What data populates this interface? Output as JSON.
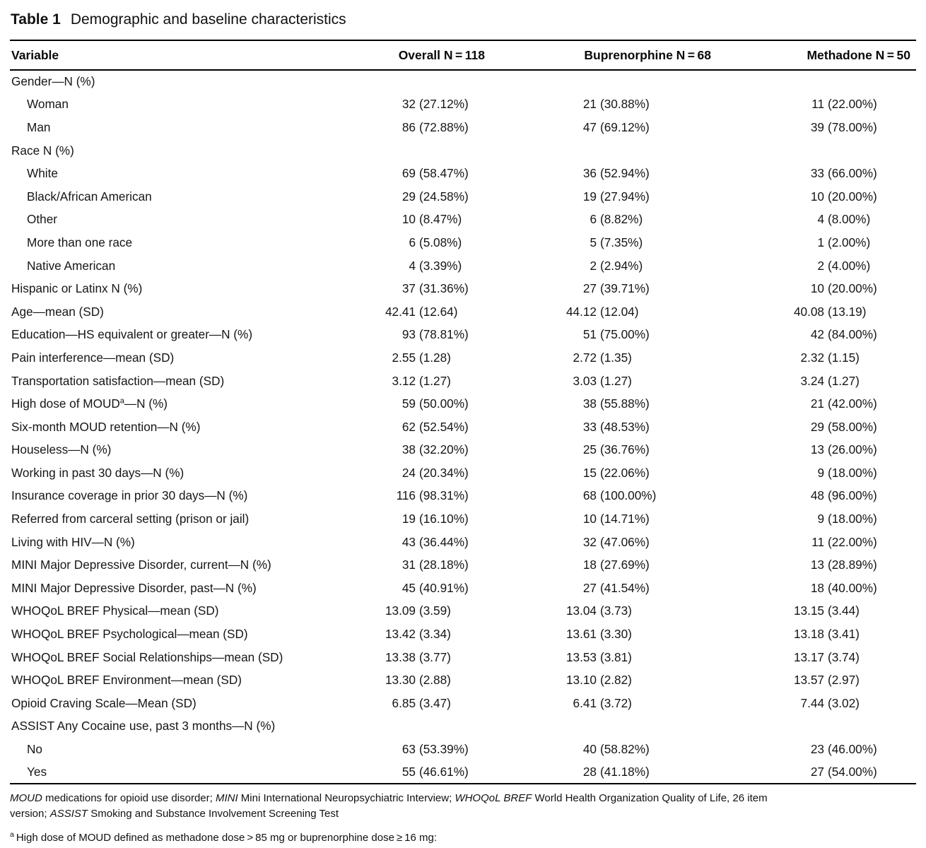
{
  "title": {
    "label": "Table 1",
    "text": "Demographic and baseline characteristics"
  },
  "table": {
    "columns": [
      "Variable",
      "Overall N = 118",
      "Buprenorphine N = 68",
      "Methadone N = 50"
    ],
    "rows": [
      {
        "label": "Gender—N (%)",
        "sup": "",
        "post": "",
        "indent": false,
        "overall": null,
        "buprenorphine": null,
        "methadone": null
      },
      {
        "label": "Woman",
        "sup": "",
        "post": "",
        "indent": true,
        "overall": {
          "n": "32",
          "p": "(27.12%)"
        },
        "buprenorphine": {
          "n": "21",
          "p": "(30.88%)"
        },
        "methadone": {
          "n": "11",
          "p": "(22.00%)"
        }
      },
      {
        "label": "Man",
        "sup": "",
        "post": "",
        "indent": true,
        "overall": {
          "n": "86",
          "p": "(72.88%)"
        },
        "buprenorphine": {
          "n": "47",
          "p": "(69.12%)"
        },
        "methadone": {
          "n": "39",
          "p": "(78.00%)"
        }
      },
      {
        "label": "Race N (%)",
        "sup": "",
        "post": "",
        "indent": false,
        "overall": null,
        "buprenorphine": null,
        "methadone": null
      },
      {
        "label": "White",
        "sup": "",
        "post": "",
        "indent": true,
        "overall": {
          "n": "69",
          "p": "(58.47%)"
        },
        "buprenorphine": {
          "n": "36",
          "p": "(52.94%)"
        },
        "methadone": {
          "n": "33",
          "p": "(66.00%)"
        }
      },
      {
        "label": "Black/African American",
        "sup": "",
        "post": "",
        "indent": true,
        "overall": {
          "n": "29",
          "p": "(24.58%)"
        },
        "buprenorphine": {
          "n": "19",
          "p": "(27.94%)"
        },
        "methadone": {
          "n": "10",
          "p": "(20.00%)"
        }
      },
      {
        "label": "Other",
        "sup": "",
        "post": "",
        "indent": true,
        "overall": {
          "n": "10",
          "p": "(8.47%)"
        },
        "buprenorphine": {
          "n": "6",
          "p": "(8.82%)"
        },
        "methadone": {
          "n": "4",
          "p": "(8.00%)"
        }
      },
      {
        "label": "More than one race",
        "sup": "",
        "post": "",
        "indent": true,
        "overall": {
          "n": "6",
          "p": "(5.08%)"
        },
        "buprenorphine": {
          "n": "5",
          "p": "(7.35%)"
        },
        "methadone": {
          "n": "1",
          "p": "(2.00%)"
        }
      },
      {
        "label": "Native American",
        "sup": "",
        "post": "",
        "indent": true,
        "overall": {
          "n": "4",
          "p": "(3.39%)"
        },
        "buprenorphine": {
          "n": "2",
          "p": "(2.94%)"
        },
        "methadone": {
          "n": "2",
          "p": "(4.00%)"
        }
      },
      {
        "label": "Hispanic or Latinx N (%)",
        "sup": "",
        "post": "",
        "indent": false,
        "overall": {
          "n": "37",
          "p": "(31.36%)"
        },
        "buprenorphine": {
          "n": "27",
          "p": "(39.71%)"
        },
        "methadone": {
          "n": "10",
          "p": "(20.00%)"
        }
      },
      {
        "label": "Age—mean (SD)",
        "sup": "",
        "post": "",
        "indent": false,
        "overall": {
          "n": "42.41",
          "p": "(12.64)"
        },
        "buprenorphine": {
          "n": "44.12",
          "p": "(12.04)"
        },
        "methadone": {
          "n": "40.08",
          "p": "(13.19)"
        }
      },
      {
        "label": "Education—HS equivalent or greater—N (%)",
        "sup": "",
        "post": "",
        "indent": false,
        "overall": {
          "n": "93",
          "p": "(78.81%)"
        },
        "buprenorphine": {
          "n": "51",
          "p": "(75.00%)"
        },
        "methadone": {
          "n": "42",
          "p": "(84.00%)"
        }
      },
      {
        "label": "Pain interference—mean (SD)",
        "sup": "",
        "post": "",
        "indent": false,
        "overall": {
          "n": "2.55",
          "p": "(1.28)"
        },
        "buprenorphine": {
          "n": "2.72",
          "p": "(1.35)"
        },
        "methadone": {
          "n": "2.32",
          "p": "(1.15)"
        }
      },
      {
        "label": "Transportation satisfaction—mean (SD)",
        "sup": "",
        "post": "",
        "indent": false,
        "overall": {
          "n": "3.12",
          "p": "(1.27)"
        },
        "buprenorphine": {
          "n": "3.03",
          "p": "(1.27)"
        },
        "methadone": {
          "n": "3.24",
          "p": "(1.27)"
        }
      },
      {
        "label": "High dose of MOUD",
        "sup": "a",
        "post": "—N (%)",
        "indent": false,
        "overall": {
          "n": "59",
          "p": "(50.00%)"
        },
        "buprenorphine": {
          "n": "38",
          "p": "(55.88%)"
        },
        "methadone": {
          "n": "21",
          "p": "(42.00%)"
        }
      },
      {
        "label": "Six-month MOUD retention—N (%)",
        "sup": "",
        "post": "",
        "indent": false,
        "overall": {
          "n": "62",
          "p": "(52.54%)"
        },
        "buprenorphine": {
          "n": "33",
          "p": "(48.53%)"
        },
        "methadone": {
          "n": "29",
          "p": "(58.00%)"
        }
      },
      {
        "label": "Houseless—N (%)",
        "sup": "",
        "post": "",
        "indent": false,
        "overall": {
          "n": "38",
          "p": "(32.20%)"
        },
        "buprenorphine": {
          "n": "25",
          "p": "(36.76%)"
        },
        "methadone": {
          "n": "13",
          "p": "(26.00%)"
        }
      },
      {
        "label": "Working in past 30 days—N (%)",
        "sup": "",
        "post": "",
        "indent": false,
        "overall": {
          "n": "24",
          "p": "(20.34%)"
        },
        "buprenorphine": {
          "n": "15",
          "p": "(22.06%)"
        },
        "methadone": {
          "n": "9",
          "p": "(18.00%)"
        }
      },
      {
        "label": "Insurance coverage in prior 30 days—N (%)",
        "sup": "",
        "post": "",
        "indent": false,
        "overall": {
          "n": "116",
          "p": "(98.31%)"
        },
        "buprenorphine": {
          "n": "68",
          "p": "(100.00%)"
        },
        "methadone": {
          "n": "48",
          "p": "(96.00%)"
        }
      },
      {
        "label": "Referred from carceral setting (prison or jail)",
        "sup": "",
        "post": "",
        "indent": false,
        "overall": {
          "n": "19",
          "p": "(16.10%)"
        },
        "buprenorphine": {
          "n": "10",
          "p": "(14.71%)"
        },
        "methadone": {
          "n": "9",
          "p": "(18.00%)"
        }
      },
      {
        "label": "Living with HIV—N (%)",
        "sup": "",
        "post": "",
        "indent": false,
        "overall": {
          "n": "43",
          "p": "(36.44%)"
        },
        "buprenorphine": {
          "n": "32",
          "p": "(47.06%)"
        },
        "methadone": {
          "n": "11",
          "p": "(22.00%)"
        }
      },
      {
        "label": "MINI Major Depressive Disorder, current—N (%)",
        "sup": "",
        "post": "",
        "indent": false,
        "overall": {
          "n": "31",
          "p": "(28.18%)"
        },
        "buprenorphine": {
          "n": "18",
          "p": "(27.69%)"
        },
        "methadone": {
          "n": "13",
          "p": "(28.89%)"
        }
      },
      {
        "label": "MINI Major Depressive Disorder, past—N (%)",
        "sup": "",
        "post": "",
        "indent": false,
        "overall": {
          "n": "45",
          "p": "(40.91%)"
        },
        "buprenorphine": {
          "n": "27",
          "p": "(41.54%)"
        },
        "methadone": {
          "n": "18",
          "p": "(40.00%)"
        }
      },
      {
        "label": "WHOQoL BREF Physical—mean (SD)",
        "sup": "",
        "post": "",
        "indent": false,
        "overall": {
          "n": "13.09",
          "p": "(3.59)"
        },
        "buprenorphine": {
          "n": "13.04",
          "p": "(3.73)"
        },
        "methadone": {
          "n": "13.15",
          "p": "(3.44)"
        }
      },
      {
        "label": "WHOQoL BREF Psychological—mean (SD)",
        "sup": "",
        "post": "",
        "indent": false,
        "overall": {
          "n": "13.42",
          "p": "(3.34)"
        },
        "buprenorphine": {
          "n": "13.61",
          "p": "(3.30)"
        },
        "methadone": {
          "n": "13.18",
          "p": "(3.41)"
        }
      },
      {
        "label": "WHOQoL BREF Social Relationships—mean (SD)",
        "sup": "",
        "post": "",
        "indent": false,
        "overall": {
          "n": "13.38",
          "p": "(3.77)"
        },
        "buprenorphine": {
          "n": "13.53",
          "p": "(3.81)"
        },
        "methadone": {
          "n": "13.17",
          "p": "(3.74)"
        }
      },
      {
        "label": "WHOQoL BREF Environment—mean (SD)",
        "sup": "",
        "post": "",
        "indent": false,
        "overall": {
          "n": "13.30",
          "p": "(2.88)"
        },
        "buprenorphine": {
          "n": "13.10",
          "p": "(2.82)"
        },
        "methadone": {
          "n": "13.57",
          "p": "(2.97)"
        }
      },
      {
        "label": "Opioid Craving Scale—Mean (SD)",
        "sup": "",
        "post": "",
        "indent": false,
        "overall": {
          "n": "6.85",
          "p": "(3.47)"
        },
        "buprenorphine": {
          "n": "6.41",
          "p": "(3.72)"
        },
        "methadone": {
          "n": "7.44",
          "p": "(3.02)"
        }
      },
      {
        "label": "ASSIST Any Cocaine use, past 3 months—N (%)",
        "sup": "",
        "post": "",
        "indent": false,
        "overall": null,
        "buprenorphine": null,
        "methadone": null
      },
      {
        "label": "No",
        "sup": "",
        "post": "",
        "indent": true,
        "overall": {
          "n": "63",
          "p": "(53.39%)"
        },
        "buprenorphine": {
          "n": "40",
          "p": "(58.82%)"
        },
        "methadone": {
          "n": "23",
          "p": "(46.00%)"
        }
      },
      {
        "label": "Yes",
        "sup": "",
        "post": "",
        "indent": true,
        "overall": {
          "n": "55",
          "p": "(46.61%)"
        },
        "buprenorphine": {
          "n": "28",
          "p": "(41.18%)"
        },
        "methadone": {
          "n": "27",
          "p": "(54.00%)"
        }
      }
    ]
  },
  "footer": {
    "abbreviations": [
      {
        "text": "MOUD",
        "italic": true
      },
      {
        "text": " medications for opioid use disorder; ",
        "italic": false
      },
      {
        "text": "MINI",
        "italic": true
      },
      {
        "text": " Mini International Neuropsychiatric Interview; ",
        "italic": false
      },
      {
        "text": "WHOQoL BREF",
        "italic": true
      },
      {
        "text": " World Health Organization Quality of Life, 26 item",
        "italic": false
      },
      {
        "text": "version; ",
        "italic": false
      },
      {
        "text": "ASSIST",
        "italic": true
      },
      {
        "text": " Smoking and Substance Involvement Screening Test",
        "italic": false
      }
    ],
    "footnote": {
      "sup": "a",
      "text": "High dose of MOUD defined as methadone dose > 85 mg or buprenorphine dose ≥ 16 mg:"
    }
  }
}
